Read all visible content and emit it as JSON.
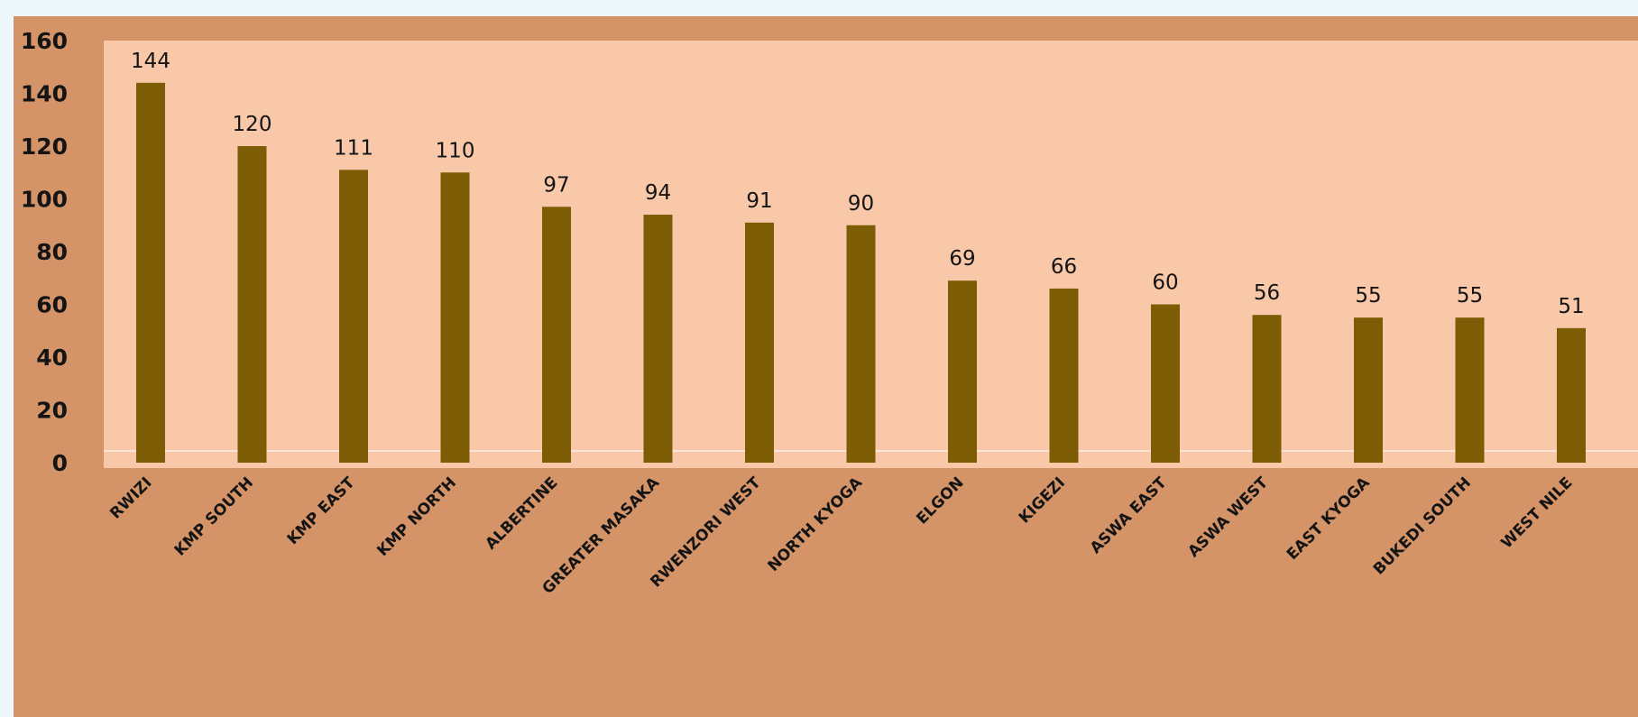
{
  "colors": {
    "page_background": "#eef7fb",
    "chart_background": "#d49468",
    "plot_background": "#f8c8a8",
    "bar_fill": "#7d5c06",
    "text": "#141414",
    "gridline": "#fbe5d6"
  },
  "chart_data": {
    "type": "bar",
    "title": "",
    "xlabel": "",
    "ylabel": "",
    "categories": [
      "RWIZI",
      "KMP SOUTH",
      "KMP EAST",
      "KMP NORTH",
      "ALBERTINE",
      "GREATER MASAKA",
      "RWENZORI WEST",
      "NORTH KYOGA",
      "ELGON",
      "KIGEZI",
      "ASWA EAST",
      "ASWA WEST",
      "EAST KYOGA",
      "BUKEDI SOUTH",
      "WEST NILE"
    ],
    "values": [
      144,
      120,
      111,
      110,
      97,
      94,
      91,
      90,
      69,
      66,
      60,
      56,
      55,
      55,
      51
    ],
    "data_labels": [
      "144",
      "120",
      "111",
      "110",
      "97",
      "94",
      "91",
      "90",
      "69",
      "66",
      "60",
      "56",
      "55",
      "55",
      "51"
    ],
    "ylim": [
      0,
      160
    ],
    "y_ticks": [
      0,
      20,
      40,
      60,
      80,
      100,
      120,
      140,
      160
    ],
    "y_tick_labels": [
      "0",
      "20",
      "40",
      "60",
      "80",
      "100",
      "120",
      "140",
      "160"
    ],
    "grid": false,
    "legend": "none"
  }
}
